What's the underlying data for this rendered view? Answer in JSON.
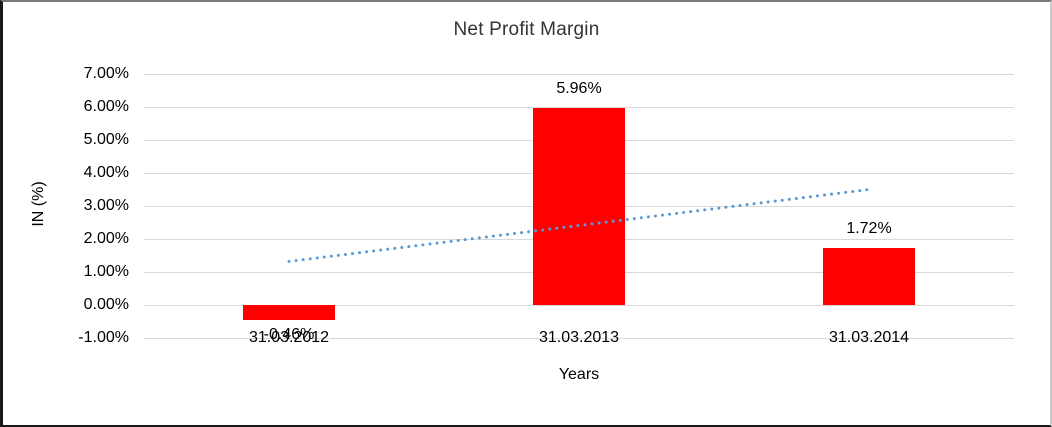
{
  "chart_data": {
    "type": "bar",
    "title": "Net Profit Margin",
    "categories": [
      "31.03.2012",
      "31.03.2013",
      "31.03.2014"
    ],
    "values": [
      -0.46,
      5.96,
      1.72
    ],
    "data_labels": [
      "-0.46%",
      "5.96%",
      "1.72%"
    ],
    "xlabel": "Years",
    "ylabel": "IN (%)",
    "ylim": [
      -1,
      7
    ],
    "ytick_step": 1,
    "ytick_labels": [
      "7.00%",
      "6.00%",
      "5.00%",
      "4.00%",
      "3.00%",
      "2.00%",
      "1.00%",
      "0.00%",
      "-1.00%"
    ],
    "grid": true,
    "legend": false,
    "bar_color": "#ff0000",
    "gridline_color": "#d9d9d9",
    "trendline": {
      "type": "linear",
      "style": "dotted",
      "color": "#5b9bd5",
      "start_value": 1.32,
      "end_value": 3.5
    }
  }
}
